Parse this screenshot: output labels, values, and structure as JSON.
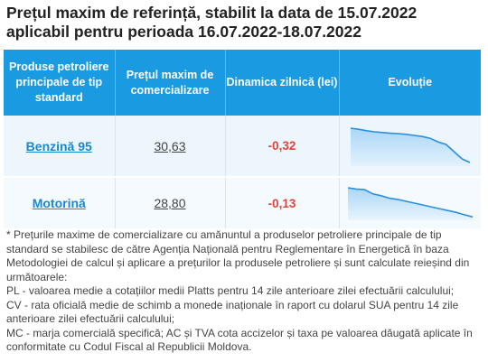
{
  "title_line1": "Prețul maxim de referință, stabilit la data de 15.07.2022",
  "title_line2": "aplicabil pentru perioada 16.07.2022-18.07.2022",
  "table": {
    "headers": [
      "Produse petroliere principale de tip standard",
      "Prețul maxim de comercializare",
      "Dinamica zilnică (lei)",
      "Evoluție"
    ],
    "rows": [
      {
        "product": "Benzină 95",
        "price": "30,63",
        "delta": "-0,32",
        "trend": [
          1.0,
          0.97,
          0.93,
          0.9,
          0.88,
          0.86,
          0.85,
          0.83,
          0.8,
          0.77,
          0.72,
          0.62,
          0.55,
          0.35,
          0.15,
          0.05
        ]
      },
      {
        "product": "Motorină",
        "price": "28,80",
        "delta": "-0,13",
        "trend": [
          1.0,
          0.96,
          0.94,
          0.8,
          0.74,
          0.66,
          0.62,
          0.56,
          0.5,
          0.44,
          0.38,
          0.32,
          0.26,
          0.2,
          0.12,
          0.05
        ]
      }
    ]
  },
  "colors": {
    "header_bg": "#1a9ae0",
    "accent_link": "#1a88cf",
    "negative": "#e2433a",
    "trend_line": "#2a8fdc",
    "trend_fill": "#a9d6f7"
  },
  "notes": [
    "* Prețurile maxime de comercializare cu amănuntul a produselor petroliere principale de tip standard se stabilesc de către Agenția Națională pentru Reglementare în Energetică în baza Metodologiei de calcul și aplicare a prețurilor la produsele petroliere și sunt calculate reieșind din următoarele:",
    "PL - valoarea medie a cotațiilor medii Platts pentru 14 zile anterioare zilei efectuării calculului;",
    "CV - rata oficială medie de schimb a monede inaționale în raport cu dolarul SUA pentru 14 zile anterioare zilei efectuării calculului;",
    "MC - marja comercială specifică; AC și TVA cota accizelor și taxa pe valoarea dăugată aplicate în conformitate cu Codul Fiscal al Republicii Moldova."
  ]
}
